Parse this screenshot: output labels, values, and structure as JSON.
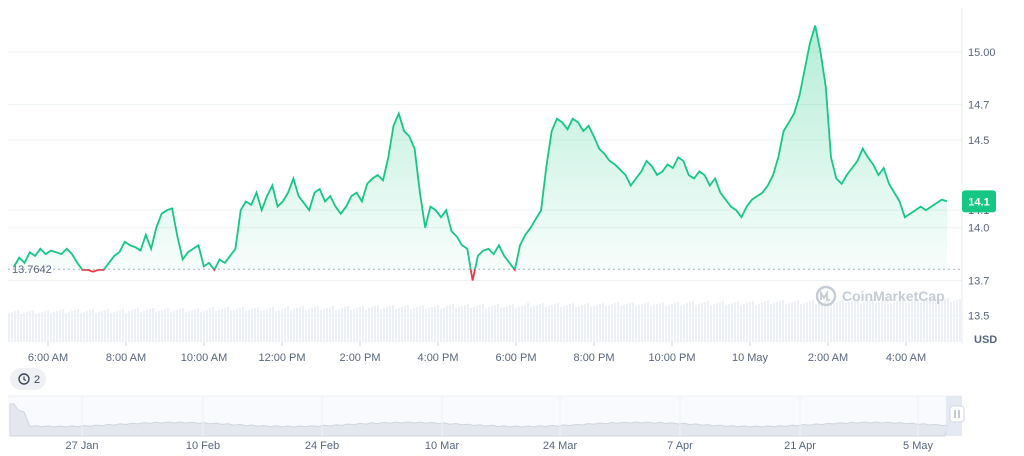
{
  "chart_data": {
    "type": "line",
    "unit": "USD",
    "watermark": "CoinMarketCap",
    "start_label": "13.7642",
    "current_label": "14.1",
    "history_badge": "2",
    "ylim": [
      13.35,
      15.25
    ],
    "y_ticks": [
      {
        "value": 13.5,
        "label": "13.5"
      },
      {
        "value": 13.7,
        "label": "13.7"
      },
      {
        "value": 14.0,
        "label": "14.0"
      },
      {
        "value": 14.1,
        "label": "14.1"
      },
      {
        "value": 14.5,
        "label": "14.5"
      },
      {
        "value": 14.7,
        "label": "14.7"
      },
      {
        "value": 15.0,
        "label": "15.00"
      }
    ],
    "x_ticks": [
      "6:00 AM",
      "8:00 AM",
      "10:00 AM",
      "12:00 PM",
      "2:00 PM",
      "4:00 PM",
      "6:00 PM",
      "8:00 PM",
      "10:00 PM",
      "10 May",
      "2:00 AM",
      "4:00 AM"
    ],
    "navigator_ticks": [
      "27 Jan",
      "10 Feb",
      "24 Feb",
      "10 Mar",
      "24 Mar",
      "7 Apr",
      "21 Apr",
      "5 May"
    ],
    "baseline": 13.7642,
    "series": [
      {
        "values": [
          13.78,
          13.83,
          13.8,
          13.86,
          13.84,
          13.88,
          13.85,
          13.87,
          13.86,
          13.85,
          13.88,
          13.85,
          13.8,
          13.76,
          13.76,
          13.75,
          13.76,
          13.76,
          13.8,
          13.84,
          13.86,
          13.92,
          13.9,
          13.89,
          13.87,
          13.96,
          13.88,
          14.0,
          14.08,
          14.1,
          14.11,
          13.95,
          13.82,
          13.86,
          13.88,
          13.9,
          13.78,
          13.8,
          13.76,
          13.82,
          13.8,
          13.84,
          13.88,
          14.1,
          14.15,
          14.13,
          14.2,
          14.1,
          14.18,
          14.24,
          14.12,
          14.15,
          14.2,
          14.28,
          14.18,
          14.14,
          14.1,
          14.2,
          14.22,
          14.15,
          14.18,
          14.12,
          14.08,
          14.12,
          14.18,
          14.2,
          14.15,
          14.25,
          14.28,
          14.3,
          14.27,
          14.4,
          14.58,
          14.65,
          14.55,
          14.52,
          14.45,
          14.2,
          14.0,
          14.12,
          14.1,
          14.06,
          14.1,
          13.98,
          13.95,
          13.9,
          13.88,
          13.7,
          13.84,
          13.87,
          13.88,
          13.85,
          13.9,
          13.84,
          13.8,
          13.76,
          13.9,
          13.96,
          14.0,
          14.05,
          14.1,
          14.35,
          14.55,
          14.62,
          14.6,
          14.56,
          14.62,
          14.6,
          14.55,
          14.58,
          14.52,
          14.45,
          14.42,
          14.38,
          14.36,
          14.33,
          14.3,
          14.24,
          14.28,
          14.32,
          14.38,
          14.35,
          14.3,
          14.32,
          14.36,
          14.34,
          14.4,
          14.38,
          14.3,
          14.28,
          14.32,
          14.3,
          14.24,
          14.28,
          14.2,
          14.16,
          14.12,
          14.1,
          14.06,
          14.12,
          14.16,
          14.18,
          14.2,
          14.24,
          14.3,
          14.4,
          14.55,
          14.6,
          14.65,
          14.75,
          14.9,
          15.05,
          15.15,
          15.0,
          14.8,
          14.4,
          14.28,
          14.25,
          14.3,
          14.34,
          14.38,
          14.45,
          14.4,
          14.36,
          14.3,
          14.34,
          14.25,
          14.2,
          14.15,
          14.06,
          14.08,
          14.1,
          14.12,
          14.1,
          14.12,
          14.14,
          14.16,
          14.15
        ]
      }
    ]
  }
}
